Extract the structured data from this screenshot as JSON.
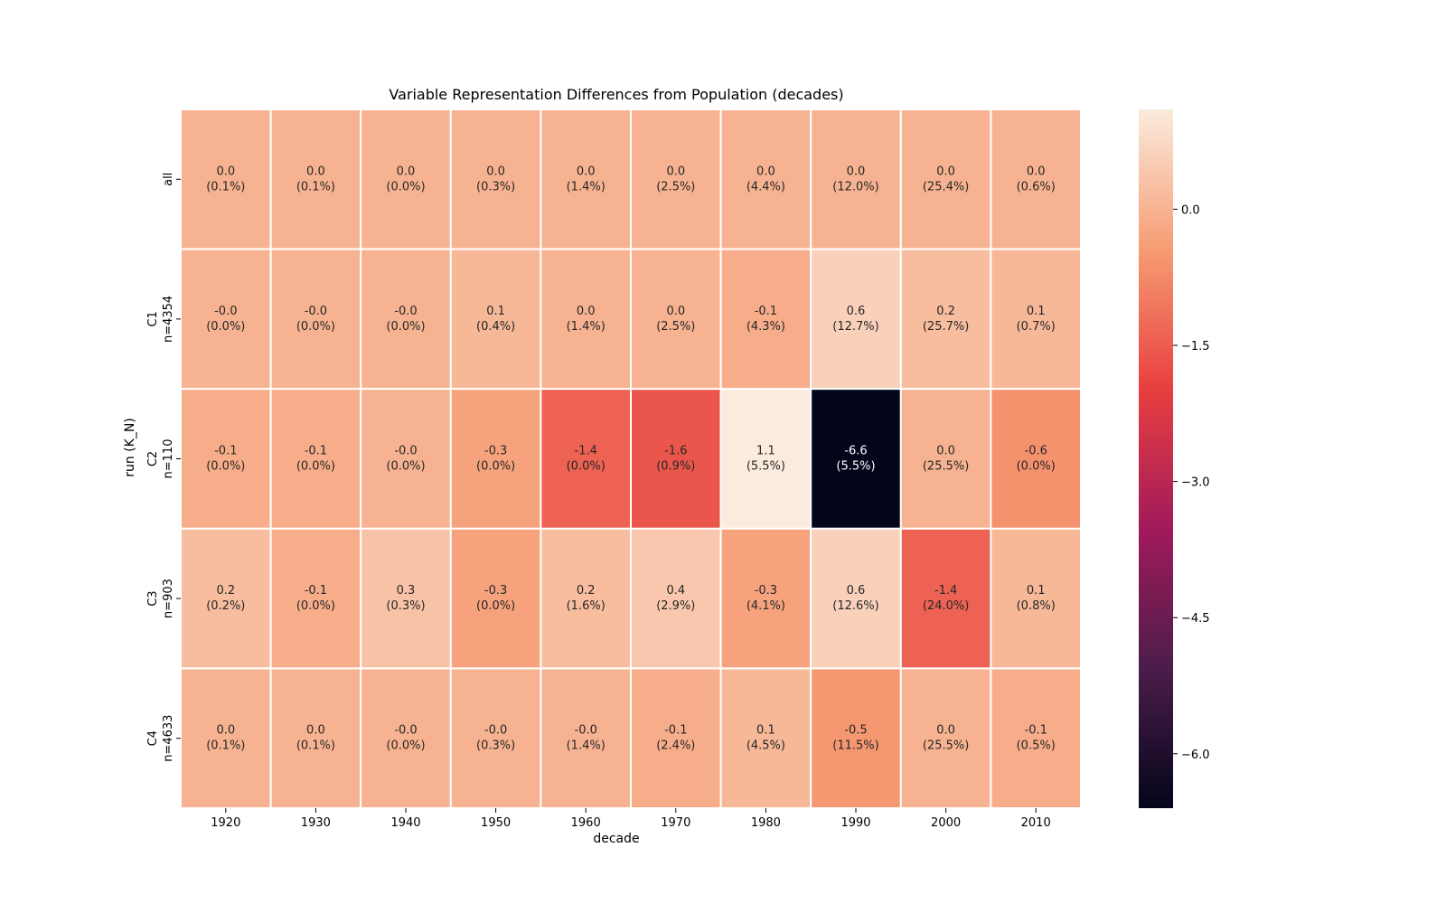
{
  "chart_data": {
    "type": "heatmap",
    "title": "Variable Representation Differences from Population (decades)",
    "xlabel": "decade",
    "ylabel": "run (K_N)",
    "x_categories": [
      "1920",
      "1930",
      "1940",
      "1950",
      "1960",
      "1970",
      "1980",
      "1990",
      "2000",
      "2010"
    ],
    "y_categories": [
      [
        "all"
      ],
      [
        "C1",
        "n=4354"
      ],
      [
        "C2",
        "n=110"
      ],
      [
        "C3",
        "n=903"
      ],
      [
        "C4",
        "n=4633"
      ]
    ],
    "values": [
      [
        0.0,
        0.0,
        0.0,
        0.0,
        0.0,
        0.0,
        0.0,
        0.0,
        0.0,
        0.0
      ],
      [
        -0.0,
        -0.0,
        -0.0,
        0.1,
        0.0,
        0.0,
        -0.1,
        0.6,
        0.2,
        0.1
      ],
      [
        -0.1,
        -0.1,
        -0.0,
        -0.3,
        -1.4,
        -1.6,
        1.1,
        -6.6,
        0.0,
        -0.6
      ],
      [
        0.2,
        -0.1,
        0.3,
        -0.3,
        0.2,
        0.4,
        -0.3,
        0.6,
        -1.4,
        0.1
      ],
      [
        0.0,
        0.0,
        -0.0,
        -0.0,
        -0.0,
        -0.1,
        0.1,
        -0.5,
        0.0,
        -0.1
      ]
    ],
    "annotations": [
      [
        [
          "0.0",
          "(0.1%)"
        ],
        [
          "0.0",
          "(0.1%)"
        ],
        [
          "0.0",
          "(0.0%)"
        ],
        [
          "0.0",
          "(0.3%)"
        ],
        [
          "0.0",
          "(1.4%)"
        ],
        [
          "0.0",
          "(2.5%)"
        ],
        [
          "0.0",
          "(4.4%)"
        ],
        [
          "0.0",
          "(12.0%)"
        ],
        [
          "0.0",
          "(25.4%)"
        ],
        [
          "0.0",
          "(0.6%)"
        ]
      ],
      [
        [
          "-0.0",
          "(0.0%)"
        ],
        [
          "-0.0",
          "(0.0%)"
        ],
        [
          "-0.0",
          "(0.0%)"
        ],
        [
          "0.1",
          "(0.4%)"
        ],
        [
          "0.0",
          "(1.4%)"
        ],
        [
          "0.0",
          "(2.5%)"
        ],
        [
          "-0.1",
          "(4.3%)"
        ],
        [
          "0.6",
          "(12.7%)"
        ],
        [
          "0.2",
          "(25.7%)"
        ],
        [
          "0.1",
          "(0.7%)"
        ]
      ],
      [
        [
          "-0.1",
          "(0.0%)"
        ],
        [
          "-0.1",
          "(0.0%)"
        ],
        [
          "-0.0",
          "(0.0%)"
        ],
        [
          "-0.3",
          "(0.0%)"
        ],
        [
          "-1.4",
          "(0.0%)"
        ],
        [
          "-1.6",
          "(0.9%)"
        ],
        [
          "1.1",
          "(5.5%)"
        ],
        [
          "-6.6",
          "(5.5%)"
        ],
        [
          "0.0",
          "(25.5%)"
        ],
        [
          "-0.6",
          "(0.0%)"
        ]
      ],
      [
        [
          "0.2",
          "(0.2%)"
        ],
        [
          "-0.1",
          "(0.0%)"
        ],
        [
          "0.3",
          "(0.3%)"
        ],
        [
          "-0.3",
          "(0.0%)"
        ],
        [
          "0.2",
          "(1.6%)"
        ],
        [
          "0.4",
          "(2.9%)"
        ],
        [
          "-0.3",
          "(4.1%)"
        ],
        [
          "0.6",
          "(12.6%)"
        ],
        [
          "-1.4",
          "(24.0%)"
        ],
        [
          "0.1",
          "(0.8%)"
        ]
      ],
      [
        [
          "0.0",
          "(0.1%)"
        ],
        [
          "0.0",
          "(0.1%)"
        ],
        [
          "-0.0",
          "(0.0%)"
        ],
        [
          "-0.0",
          "(0.3%)"
        ],
        [
          "-0.0",
          "(1.4%)"
        ],
        [
          "-0.1",
          "(2.4%)"
        ],
        [
          "0.1",
          "(4.5%)"
        ],
        [
          "-0.5",
          "(11.5%)"
        ],
        [
          "0.0",
          "(25.5%)"
        ],
        [
          "-0.1",
          "(0.5%)"
        ]
      ]
    ],
    "colorbar": {
      "range": [
        -6.6,
        1.1
      ],
      "ticks": [
        0.0,
        -1.5,
        -3.0,
        -4.5,
        -6.0
      ],
      "tick_labels": [
        "0.0",
        "−1.5",
        "−3.0",
        "−4.5",
        "−6.0"
      ],
      "colormap": "rocket",
      "stops": [
        "#03051a",
        "#4c1d4b",
        "#a11a5b",
        "#e83f3f",
        "#f69c73",
        "#faebdd"
      ]
    },
    "grid": false,
    "cell_border_color": "#ffffff",
    "text_color_dark": "#262626",
    "text_color_light": "#ffffff"
  }
}
